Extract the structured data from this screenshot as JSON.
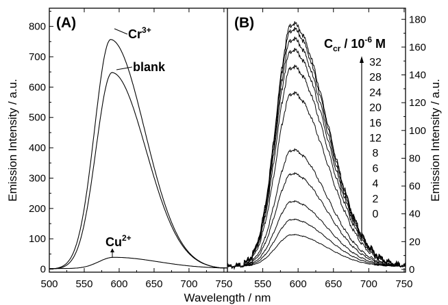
{
  "chart_data": [
    {
      "panel": "(A)",
      "type": "line",
      "xlabel": "Wavelength / nm",
      "ylabel": "Emission Intensity / a.u.",
      "xlim": [
        500,
        755
      ],
      "ylim": [
        -10,
        860
      ],
      "xticks": [
        "500",
        "550",
        "600",
        "650",
        "700",
        "750"
      ],
      "yticks": [
        "0",
        "100",
        "200",
        "300",
        "400",
        "500",
        "600",
        "700",
        "800"
      ],
      "series": [
        {
          "name": "Cr",
          "superscript": "3+",
          "peak_x": 588,
          "peak_y": 757,
          "tail_y": 10
        },
        {
          "name": "blank",
          "superscript": "",
          "peak_x": 590,
          "peak_y": 648,
          "tail_y": 10
        },
        {
          "name": "Cu",
          "superscript": "2+",
          "peak_x": 592,
          "peak_y": 37,
          "tail_y": 3
        }
      ]
    },
    {
      "panel": "(B)",
      "type": "line",
      "xlabel": "Wavelength / nm",
      "ylabel": "Emission Intensity / a.u.",
      "xlim": [
        500,
        752
      ],
      "ylim": [
        -2,
        188
      ],
      "xticks": [
        "550",
        "600",
        "650",
        "700",
        "750"
      ],
      "yticks": [
        "0",
        "20",
        "40",
        "60",
        "80",
        "100",
        "120",
        "140",
        "160",
        "180"
      ],
      "legend_title": "C",
      "legend_title_sub": "cr",
      "legend_title_unit": " / 10",
      "legend_title_exp": "-6",
      "legend_title_end": " M",
      "concentrations": [
        "32",
        "28",
        "24",
        "20",
        "16",
        "12",
        "8",
        "6",
        "4",
        "2",
        "0"
      ],
      "series": [
        {
          "name": "0",
          "peak_y": 23
        },
        {
          "name": "2",
          "peak_y": 34
        },
        {
          "name": "4",
          "peak_y": 47
        },
        {
          "name": "6",
          "peak_y": 67
        },
        {
          "name": "8",
          "peak_y": 84
        },
        {
          "name": "12",
          "peak_y": 125
        },
        {
          "name": "16",
          "peak_y": 144
        },
        {
          "name": "20",
          "peak_y": 156
        },
        {
          "name": "24",
          "peak_y": 164
        },
        {
          "name": "28",
          "peak_y": 171
        },
        {
          "name": "32",
          "peak_y": 175
        }
      ],
      "peak_x": 592
    }
  ]
}
